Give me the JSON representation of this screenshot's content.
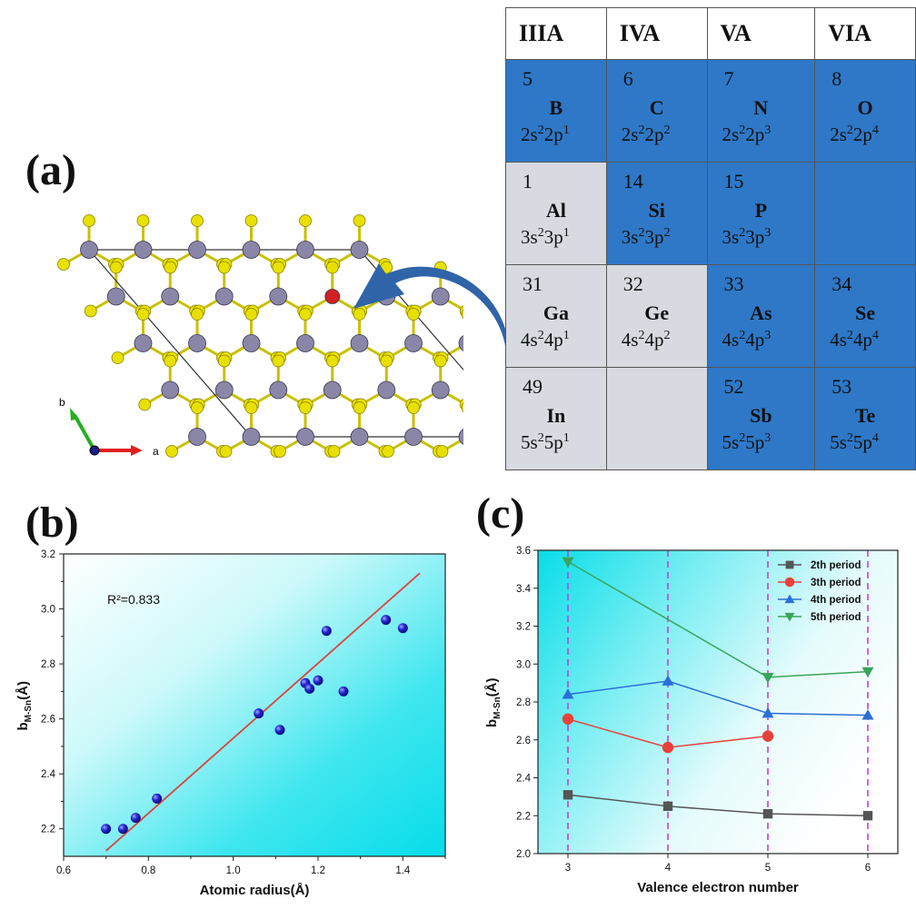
{
  "panels": {
    "a": "(a)",
    "b": "(b)",
    "c": "(c)"
  },
  "structure": {
    "axis_a": "a",
    "axis_b": "b"
  },
  "table": {
    "headers": [
      "IIIA",
      "IVA",
      "VA",
      "VIA"
    ],
    "rows": [
      [
        {
          "num": "5",
          "sym": "B",
          "c1": "2s",
          "e1": "2",
          "c2": "2p",
          "e2": "1",
          "state": "blue"
        },
        {
          "num": "6",
          "sym": "C",
          "c1": "2s",
          "e1": "2",
          "c2": "2p",
          "e2": "2",
          "state": "blue"
        },
        {
          "num": "7",
          "sym": "N",
          "c1": "2s",
          "e1": "2",
          "c2": "2p",
          "e2": "3",
          "state": "blue"
        },
        {
          "num": "8",
          "sym": "O",
          "c1": "2s",
          "e1": "2",
          "c2": "2p",
          "e2": "4",
          "state": "blue"
        }
      ],
      [
        {
          "num": "1",
          "sym": "Al",
          "c1": "3s",
          "e1": "2",
          "c2": "3p",
          "e2": "1",
          "state": "gray"
        },
        {
          "num": "14",
          "sym": "Si",
          "c1": "3s",
          "e1": "2",
          "c2": "3p",
          "e2": "2",
          "state": "blue"
        },
        {
          "num": "15",
          "sym": "P",
          "c1": "3s",
          "e1": "2",
          "c2": "3p",
          "e2": "3",
          "state": "blue"
        },
        {
          "state": "blue"
        }
      ],
      [
        {
          "num": "31",
          "sym": "Ga",
          "c1": "4s",
          "e1": "2",
          "c2": "4p",
          "e2": "1",
          "state": "gray"
        },
        {
          "num": "32",
          "sym": "Ge",
          "c1": "4s",
          "e1": "2",
          "c2": "4p",
          "e2": "2",
          "state": "gray"
        },
        {
          "num": "33",
          "sym": "As",
          "c1": "4s",
          "e1": "2",
          "c2": "4p",
          "e2": "3",
          "state": "blue"
        },
        {
          "num": "34",
          "sym": "Se",
          "c1": "4s",
          "e1": "2",
          "c2": "4p",
          "e2": "4",
          "state": "blue"
        }
      ],
      [
        {
          "num": "49",
          "sym": "In",
          "c1": "5s",
          "e1": "2",
          "c2": "5p",
          "e2": "1",
          "state": "gray"
        },
        {
          "state": "gray"
        },
        {
          "num": "52",
          "sym": "Sb",
          "c1": "5s",
          "e1": "2",
          "c2": "5p",
          "e2": "3",
          "state": "blue"
        },
        {
          "num": "53",
          "sym": "Te",
          "c1": "5s",
          "e1": "2",
          "c2": "5p",
          "e2": "4",
          "state": "blue"
        }
      ]
    ]
  },
  "colors": {
    "cell_blue": "#2e78c7",
    "cell_gray": "#d7dae0",
    "sn_atom": "#8a86a8",
    "s_atom": "#e8e000",
    "dopant": "#d42020",
    "fit_line": "#e0403a",
    "scatter_point": "#1d1fbf"
  },
  "chart_data": [
    {
      "type": "scatter",
      "title": "",
      "xlabel": "Atomic radius(Å)",
      "ylabel_main": "b",
      "ylabel_sub": "M-Sn",
      "ylabel_unit": "(Å)",
      "xlim": [
        0.6,
        1.5
      ],
      "ylim": [
        2.1,
        3.2
      ],
      "xticks": [
        0.6,
        0.8,
        1.0,
        1.2,
        1.4
      ],
      "xtick_labels": [
        "0.6",
        "0.8",
        "1.0",
        "1.2",
        "1.4"
      ],
      "yticks": [
        2.2,
        2.4,
        2.6,
        2.8,
        3.0,
        3.2
      ],
      "ytick_labels": [
        "2.2",
        "2.4",
        "2.6",
        "2.8",
        "3.0",
        "3.2"
      ],
      "annotation": "R²=0.833",
      "points": [
        {
          "x": 0.7,
          "y": 2.2
        },
        {
          "x": 0.74,
          "y": 2.2
        },
        {
          "x": 0.77,
          "y": 2.24
        },
        {
          "x": 0.82,
          "y": 2.31
        },
        {
          "x": 1.06,
          "y": 2.62
        },
        {
          "x": 1.11,
          "y": 2.56
        },
        {
          "x": 1.17,
          "y": 2.73
        },
        {
          "x": 1.18,
          "y": 2.71
        },
        {
          "x": 1.2,
          "y": 2.74
        },
        {
          "x": 1.22,
          "y": 2.92
        },
        {
          "x": 1.26,
          "y": 2.7
        },
        {
          "x": 1.36,
          "y": 2.96
        },
        {
          "x": 1.4,
          "y": 2.93
        }
      ],
      "fit_line": {
        "x": [
          0.7,
          1.44
        ],
        "y": [
          2.12,
          3.13
        ]
      }
    },
    {
      "type": "line",
      "title": "",
      "xlabel": "Valence electron number",
      "ylabel_main": "b",
      "ylabel_sub": "M-Sn",
      "ylabel_unit": "(Å)",
      "xlim": [
        2.7,
        6.3
      ],
      "ylim": [
        2.0,
        3.6
      ],
      "xticks": [
        3,
        4,
        5,
        6
      ],
      "xtick_labels": [
        "3",
        "4",
        "5",
        "6"
      ],
      "yticks": [
        2.0,
        2.2,
        2.4,
        2.6,
        2.8,
        3.0,
        3.2,
        3.4,
        3.6
      ],
      "ytick_labels": [
        "2.0",
        "2.2",
        "2.4",
        "2.6",
        "2.8",
        "3.0",
        "3.2",
        "3.4",
        "3.6"
      ],
      "vlines": [
        3,
        4,
        5,
        6
      ],
      "legend_position": "top-right",
      "series": [
        {
          "name": "2th period",
          "marker": "square",
          "color": "#555555",
          "x": [
            3,
            4,
            5,
            6
          ],
          "y": [
            2.31,
            2.25,
            2.21,
            2.2
          ]
        },
        {
          "name": "3th period",
          "marker": "circle",
          "color": "#e8403a",
          "x": [
            3,
            4,
            5
          ],
          "y": [
            2.71,
            2.56,
            2.62
          ]
        },
        {
          "name": "4th period",
          "marker": "triangle-up",
          "color": "#2a6fd6",
          "x": [
            3,
            4,
            5,
            6
          ],
          "y": [
            2.84,
            2.91,
            2.74,
            2.73
          ]
        },
        {
          "name": "5th period",
          "marker": "triangle-down",
          "color": "#3aa45a",
          "x": [
            3,
            5,
            6
          ],
          "y": [
            3.54,
            2.93,
            2.96
          ]
        }
      ]
    }
  ]
}
